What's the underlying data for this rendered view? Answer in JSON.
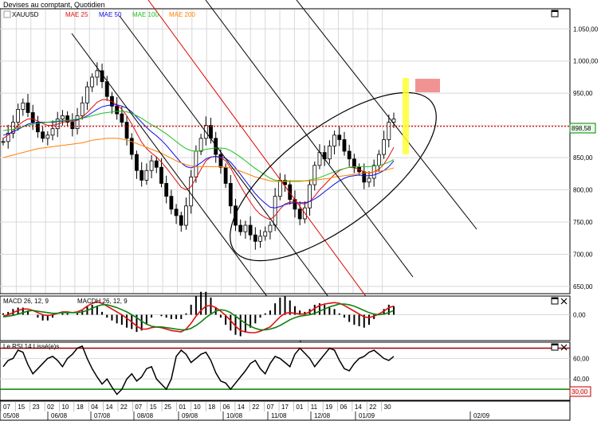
{
  "window": {
    "title": "Devises au comptant, Quotidien"
  },
  "colors": {
    "price": "#000000",
    "mae25": "#e01010",
    "mae50": "#1010e0",
    "mae100": "#20c020",
    "mae200": "#ff8000",
    "grid": "#d8d8d8",
    "last_price_line": "#e00000",
    "trend_red": "#e00000",
    "band_yellow": "#ffff33",
    "box_pink": "#f08080",
    "rsi_line": "#000000",
    "hline_red": "#a00000",
    "hline_green": "#008000"
  },
  "icons": {
    "box": "square-icon",
    "close": "close-icon",
    "ticker_badge": "ticker-icon"
  },
  "chart_data": [
    {
      "type": "line",
      "panel": "price",
      "legend": [
        {
          "name": "XAUUSD",
          "color": "#000000"
        },
        {
          "name": "MAE 25",
          "color": "#e01010"
        },
        {
          "name": "MAE 50",
          "color": "#1010e0"
        },
        {
          "name": "MAE 100",
          "color": "#20c020"
        },
        {
          "name": "MAE 200",
          "color": "#ff8000"
        }
      ],
      "ylim": [
        640,
        1080
      ],
      "yticks": [
        "650,00",
        "700,00",
        "750,00",
        "800,00",
        "850,00",
        "900,00",
        "950,00",
        "1.000,00",
        "1.050,00"
      ],
      "yticks_values": [
        650,
        700,
        750,
        800,
        850,
        900,
        950,
        1000,
        1050
      ],
      "last_value": 898.58,
      "last_label": "898,58",
      "series": [
        {
          "name": "XAUUSD",
          "values": [
            875,
            888,
            905,
            925,
            935,
            920,
            905,
            890,
            880,
            885,
            895,
            910,
            915,
            905,
            895,
            915,
            935,
            960,
            975,
            985,
            968,
            945,
            930,
            918,
            905,
            880,
            855,
            830,
            815,
            830,
            845,
            835,
            810,
            790,
            770,
            760,
            745,
            775,
            820,
            860,
            880,
            900,
            880,
            855,
            835,
            810,
            775,
            745,
            735,
            745,
            730,
            720,
            728,
            735,
            745,
            790,
            815,
            808,
            785,
            770,
            755,
            772,
            808,
            838,
            858,
            848,
            868,
            885,
            878,
            860,
            848,
            835,
            828,
            812,
            818,
            838,
            855,
            878,
            905,
            910
          ]
        },
        {
          "name": "MAE 25",
          "values": [
            880,
            885,
            892,
            900,
            906,
            910,
            910,
            907,
            903,
            900,
            900,
            902,
            905,
            906,
            906,
            908,
            913,
            920,
            928,
            936,
            940,
            940,
            937,
            932,
            925,
            915,
            902,
            888,
            874,
            864,
            857,
            851,
            843,
            834,
            824,
            814,
            804,
            800,
            805,
            818,
            832,
            845,
            851,
            852,
            850,
            845,
            834,
            820,
            806,
            793,
            781,
            770,
            762,
            757,
            754,
            760,
            770,
            778,
            781,
            781,
            779,
            778,
            782,
            790,
            800,
            808,
            816,
            824,
            830,
            833,
            835,
            834,
            832,
            828,
            826,
            828,
            832,
            840,
            852,
            866
          ]
        },
        {
          "name": "MAE 50",
          "values": [
            885,
            887,
            890,
            894,
            898,
            902,
            904,
            905,
            905,
            905,
            905,
            906,
            907,
            908,
            908,
            909,
            911,
            915,
            920,
            925,
            929,
            931,
            932,
            932,
            930,
            927,
            921,
            913,
            905,
            897,
            890,
            884,
            877,
            869,
            860,
            851,
            842,
            836,
            834,
            837,
            842,
            848,
            851,
            852,
            851,
            849,
            843,
            834,
            824,
            814,
            804,
            794,
            786,
            779,
            773,
            772,
            774,
            777,
            779,
            780,
            780,
            780,
            782,
            786,
            791,
            797,
            803,
            809,
            814,
            818,
            821,
            822,
            823,
            822,
            822,
            823,
            826,
            830,
            836,
            845
          ]
        },
        {
          "name": "MAE 100",
          "values": [
            892,
            893,
            894,
            896,
            898,
            900,
            902,
            903,
            904,
            905,
            906,
            907,
            908,
            908,
            909,
            910,
            911,
            913,
            915,
            917,
            919,
            920,
            921,
            922,
            922,
            921,
            919,
            915,
            911,
            906,
            901,
            897,
            892,
            887,
            881,
            875,
            869,
            864,
            861,
            860,
            861,
            863,
            864,
            865,
            865,
            864,
            861,
            856,
            851,
            845,
            839,
            833,
            828,
            823,
            818,
            815,
            814,
            814,
            814,
            814,
            814,
            814,
            815,
            817,
            819,
            822,
            825,
            828,
            831,
            833,
            835,
            836,
            836,
            836,
            836,
            837,
            838,
            840,
            843,
            847
          ]
        },
        {
          "name": "MAE 200",
          "values": [
            850,
            852,
            854,
            856,
            858,
            860,
            862,
            864,
            865,
            866,
            867,
            868,
            869,
            870,
            871,
            872,
            873,
            875,
            877,
            878,
            879,
            880,
            880,
            880,
            879,
            877,
            875,
            872,
            869,
            866,
            863,
            860,
            857,
            853,
            849,
            845,
            842,
            839,
            837,
            836,
            836,
            836,
            836,
            836,
            836,
            835,
            834,
            832,
            829,
            826,
            823,
            820,
            818,
            816,
            814,
            813,
            813,
            813,
            813,
            813,
            813,
            814,
            814,
            815,
            816,
            817,
            818,
            820,
            821,
            822,
            823,
            824,
            825,
            826,
            827,
            828,
            829,
            830,
            832,
            834
          ]
        }
      ],
      "xticks_day": [
        "07",
        "15",
        "23",
        "02",
        "10",
        "18",
        "04",
        "14",
        "22",
        "07",
        "15",
        "25",
        "01",
        "10",
        "18",
        "06",
        "14",
        "22",
        "07",
        "17",
        "01",
        "11",
        "19",
        "06",
        "14",
        "22",
        "30"
      ],
      "xticks_month": [
        "05/08",
        "06/08",
        "07/08",
        "08/08",
        "09/08",
        "10/08",
        "11/08",
        "12/08",
        "01/09",
        "02/09"
      ]
    },
    {
      "type": "line",
      "panel": "macd",
      "legend": [
        {
          "name": "MACD 26, 12, 9",
          "color": "#000000"
        },
        {
          "name": "MACDH 26, 12, 9",
          "color": "#000000"
        }
      ],
      "ylim": [
        -35,
        25
      ],
      "yticks": [
        "0,00"
      ],
      "yticks_values": [
        0
      ],
      "series": [
        {
          "name": "MACD",
          "values": [
            -2,
            0,
            3,
            6,
            8,
            8,
            6,
            3,
            0,
            -1,
            0,
            2,
            4,
            4,
            3,
            4,
            7,
            12,
            16,
            18,
            16,
            12,
            8,
            4,
            0,
            -5,
            -10,
            -16,
            -20,
            -20,
            -18,
            -17,
            -18,
            -20,
            -22,
            -23,
            -24,
            -20,
            -12,
            -2,
            6,
            12,
            13,
            10,
            5,
            -1,
            -8,
            -16,
            -22,
            -24,
            -25,
            -25,
            -23,
            -20,
            -17,
            -10,
            -3,
            2,
            3,
            2,
            1,
            1,
            4,
            9,
            13,
            15,
            16,
            17,
            16,
            13,
            9,
            5,
            1,
            -3,
            -4,
            -2,
            1,
            5,
            10,
            12
          ]
        },
        {
          "name": "Signal",
          "values": [
            -3,
            -2,
            -1,
            1,
            3,
            5,
            6,
            5,
            4,
            3,
            2,
            2,
            3,
            3,
            3,
            3,
            4,
            6,
            9,
            12,
            14,
            14,
            12,
            10,
            7,
            4,
            0,
            -4,
            -9,
            -13,
            -16,
            -17,
            -17,
            -18,
            -19,
            -20,
            -21,
            -21,
            -19,
            -15,
            -10,
            -4,
            1,
            5,
            7,
            6,
            3,
            -2,
            -7,
            -12,
            -16,
            -19,
            -21,
            -21,
            -20,
            -18,
            -15,
            -11,
            -7,
            -4,
            -2,
            -1,
            0,
            2,
            5,
            8,
            11,
            13,
            15,
            15,
            14,
            12,
            9,
            6,
            3,
            1,
            0,
            1,
            3,
            6
          ]
        }
      ]
    },
    {
      "type": "line",
      "panel": "rsi",
      "legend": [
        {
          "name": "Le RSI 14 Lissé(e)s",
          "color": "#000000"
        }
      ],
      "ylim": [
        20,
        75
      ],
      "yticks": [
        "60,00",
        "40,00"
      ],
      "yticks_values": [
        60,
        40
      ],
      "upper_level": 70,
      "lower_level": 30,
      "lower_label": "30,00",
      "series": [
        {
          "name": "RSI",
          "values": [
            52,
            58,
            60,
            68,
            66,
            54,
            45,
            50,
            55,
            60,
            62,
            58,
            52,
            60,
            64,
            70,
            72,
            60,
            50,
            42,
            35,
            40,
            32,
            25,
            30,
            40,
            45,
            38,
            42,
            50,
            52,
            40,
            35,
            30,
            40,
            62,
            68,
            64,
            56,
            60,
            64,
            66,
            58,
            46,
            38,
            36,
            30,
            36,
            42,
            48,
            55,
            58,
            50,
            45,
            55,
            62,
            60,
            56,
            52,
            64,
            70,
            65,
            60,
            52,
            58,
            64,
            70,
            68,
            58,
            50,
            48,
            55,
            60,
            62,
            66,
            68,
            64,
            60,
            58,
            62
          ]
        }
      ]
    }
  ]
}
